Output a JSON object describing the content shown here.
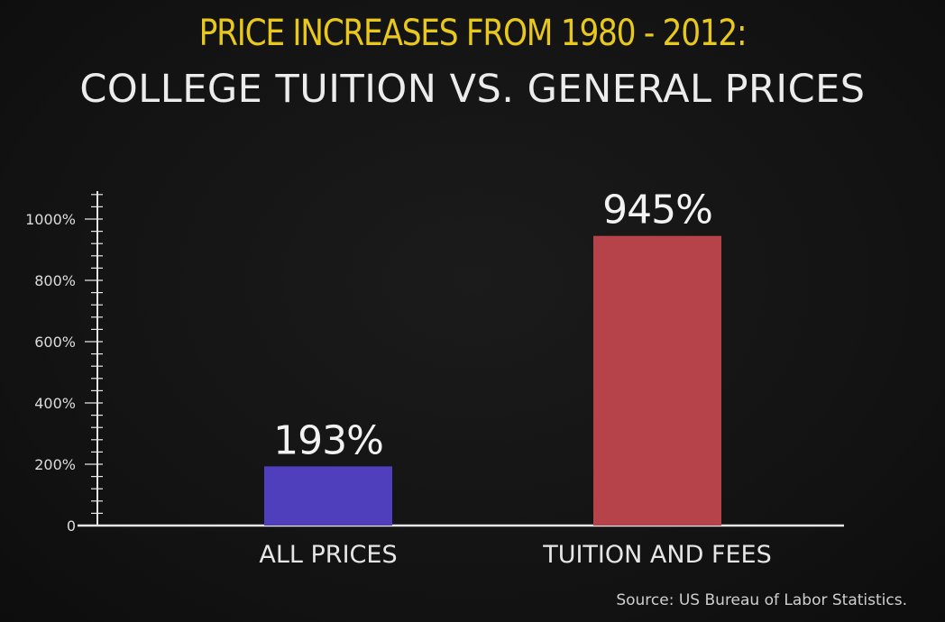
{
  "chart_data": {
    "type": "bar",
    "title": "PRICE INCREASES FROM 1980 - 2012:",
    "subtitle": "COLLEGE TUITION VS. GENERAL PRICES",
    "source": "Source: US Bureau of Labor Statistics.",
    "categories": [
      "ALL PRICES",
      "TUITION AND FEES"
    ],
    "values": [
      193,
      945
    ],
    "data_labels": [
      "193%",
      "945%"
    ],
    "colors": [
      "#4f3fbd",
      "#b7434a"
    ],
    "ylim": [
      0,
      1000
    ],
    "yticks": [
      0,
      200,
      400,
      600,
      800,
      1000
    ],
    "ytick_labels": [
      "0",
      "200%",
      "400%",
      "600%",
      "800%",
      "1000%"
    ],
    "minor_tick_step": 40,
    "grid": false,
    "legend": "none",
    "title_color": "#e8c81c",
    "axis_color": "#e6e6e6"
  }
}
